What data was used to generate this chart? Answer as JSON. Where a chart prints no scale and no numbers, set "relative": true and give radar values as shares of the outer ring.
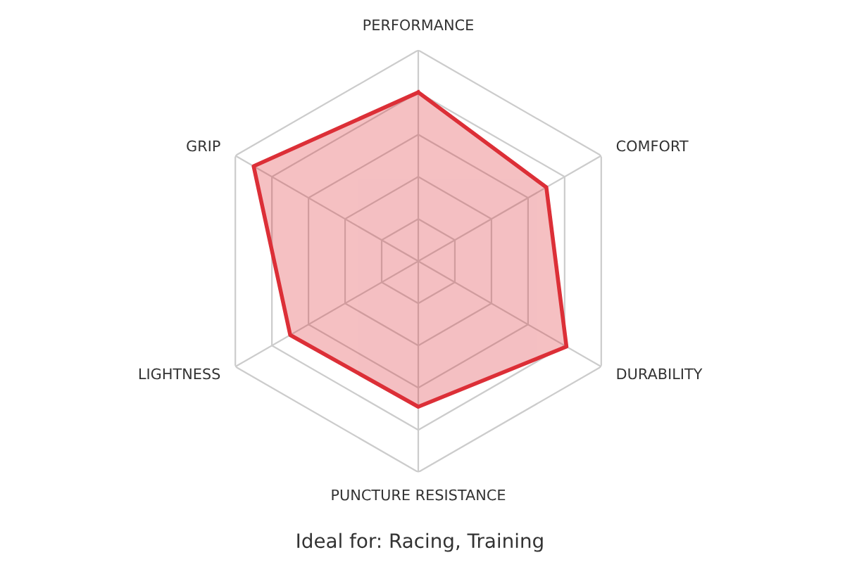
{
  "chart_data": {
    "type": "radar",
    "relative": true,
    "grid": true,
    "categories": [
      "PERFORMANCE",
      "COMFORT",
      "DURABILITY",
      "PUNCTURE RESISTANCE",
      "LIGHTNESS",
      "GRIP"
    ],
    "series": [
      {
        "color": "#dc2f37",
        "values": [
          0.8,
          0.7,
          0.81,
          0.69,
          0.7,
          0.9
        ]
      }
    ],
    "annotations": [
      "Ideal for: Racing, Training"
    ]
  }
}
